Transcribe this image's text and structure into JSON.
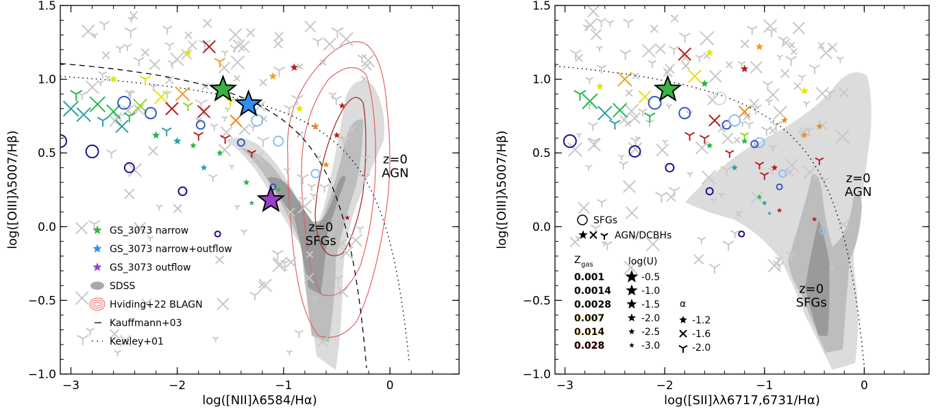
{
  "chart_data": [
    {
      "type": "scatter",
      "id": "nii",
      "xlabel": "log([NII]λ6584/Hα)",
      "ylabel": "log([OIII]λ5007/Hβ)",
      "xlim": [
        -3.1,
        0.65
      ],
      "ylim": [
        -1.0,
        1.5
      ],
      "xticks": [
        "−3",
        "−2",
        "−1",
        "0"
      ],
      "xtick_values": [
        -3,
        -2,
        -1,
        0
      ],
      "yticks": [
        "−1.0",
        "−0.5",
        "0.0",
        "0.5",
        "1.0",
        "1.5"
      ],
      "ytick_values": [
        -1.0,
        -0.5,
        0.0,
        0.5,
        1.0,
        1.5
      ],
      "region_labels": [
        {
          "text": [
            "z=0",
            "AGN"
          ],
          "x": 0.05,
          "y": 0.43
        },
        {
          "text": [
            "z=0",
            "SFGs"
          ],
          "x": -0.65,
          "y": -0.03
        }
      ],
      "stars": [
        {
          "name": "GS_3073 narrow",
          "x": -1.57,
          "y": 0.93,
          "color": "#3cb043"
        },
        {
          "name": "GS_3073 narrow+outflow",
          "x": -1.33,
          "y": 0.83,
          "color": "#2f8ff0"
        },
        {
          "name": "GS_3073 outflow",
          "x": -1.12,
          "y": 0.18,
          "color": "#9a3fc8"
        }
      ],
      "circles": [
        {
          "x": -3.1,
          "y": 0.58,
          "r": 9,
          "color": "#14148a"
        },
        {
          "x": -2.8,
          "y": 0.51,
          "r": 9,
          "color": "#14148a"
        },
        {
          "x": -2.5,
          "y": 0.84,
          "r": 9,
          "color": "#3355cc"
        },
        {
          "x": -2.45,
          "y": 0.4,
          "r": 7,
          "color": "#14148a"
        },
        {
          "x": -2.25,
          "y": 0.77,
          "r": 8,
          "color": "#3355cc"
        },
        {
          "x": -1.95,
          "y": 0.24,
          "r": 6,
          "color": "#14148a"
        },
        {
          "x": -1.78,
          "y": 0.69,
          "r": 6,
          "color": "#3355cc"
        },
        {
          "x": -1.62,
          "y": -0.05,
          "r": 4,
          "color": "#14148a"
        },
        {
          "x": -1.05,
          "y": 0.58,
          "r": 7,
          "color": "#88c0f0"
        },
        {
          "x": -0.7,
          "y": 0.36,
          "r": 6,
          "color": "#88c0f0"
        },
        {
          "x": -1.4,
          "y": 0.57,
          "r": 5,
          "color": "#3355cc"
        },
        {
          "x": -1.1,
          "y": 0.27,
          "r": 4,
          "color": "#3355cc"
        },
        {
          "x": -1.25,
          "y": 0.72,
          "r": 8,
          "color": "#88c0f0"
        }
      ],
      "crosses": [
        {
          "x": -3.0,
          "y": 0.8,
          "s": 11,
          "color": "#2aa0a0"
        },
        {
          "x": -2.88,
          "y": 0.76,
          "s": 10,
          "color": "#2aa0a0"
        },
        {
          "x": -2.75,
          "y": 0.83,
          "s": 11,
          "color": "#22b84a"
        },
        {
          "x": -2.6,
          "y": 0.78,
          "s": 10,
          "color": "#22b84a"
        },
        {
          "x": -2.52,
          "y": 0.68,
          "s": 9,
          "color": "#2aa0a0"
        },
        {
          "x": -2.35,
          "y": 0.82,
          "s": 10,
          "color": "#8dd61e"
        },
        {
          "x": -2.15,
          "y": 0.88,
          "s": 10,
          "color": "#e3e310"
        },
        {
          "x": -2.05,
          "y": 0.8,
          "s": 9,
          "color": "#b52020"
        },
        {
          "x": -1.95,
          "y": 0.9,
          "s": 10,
          "color": "#f0a020"
        },
        {
          "x": -1.75,
          "y": 0.78,
          "s": 9,
          "color": "#b52020"
        },
        {
          "x": -1.7,
          "y": 1.22,
          "s": 9,
          "color": "#b52020"
        },
        {
          "x": -1.45,
          "y": 0.72,
          "s": 8,
          "color": "#f08a1a"
        }
      ],
      "tripods": [
        {
          "x": -2.95,
          "y": 0.9,
          "s": 10,
          "color": "#22b84a"
        },
        {
          "x": -2.7,
          "y": 0.72,
          "s": 9,
          "color": "#2aa0a0"
        },
        {
          "x": -2.45,
          "y": 0.75,
          "s": 9,
          "color": "#22b84a"
        },
        {
          "x": -2.3,
          "y": 1.0,
          "s": 9,
          "color": "#e3e310"
        },
        {
          "x": -2.1,
          "y": 0.65,
          "s": 8,
          "color": "#2aa0a0"
        },
        {
          "x": -1.9,
          "y": 0.82,
          "s": 8,
          "color": "#8dd61e"
        },
        {
          "x": -1.8,
          "y": 0.62,
          "s": 8,
          "color": "#b52020"
        },
        {
          "x": -1.55,
          "y": 0.6,
          "s": 8,
          "color": "#b52020"
        },
        {
          "x": -1.5,
          "y": 0.85,
          "s": 8,
          "color": "#e3e310"
        },
        {
          "x": -1.3,
          "y": 0.5,
          "s": 7,
          "color": "#b52020"
        },
        {
          "x": -1.6,
          "y": 1.12,
          "s": 9,
          "color": "#f0a020"
        }
      ],
      "small_stars": [
        {
          "x": -2.2,
          "y": 0.62,
          "s": 6,
          "color": "#22b84a"
        },
        {
          "x": -2.0,
          "y": 0.58,
          "s": 6,
          "color": "#2aa0a0"
        },
        {
          "x": -1.85,
          "y": 0.55,
          "s": 5,
          "color": "#22b84a"
        },
        {
          "x": -1.75,
          "y": 0.4,
          "s": 5,
          "color": "#2aa0a0"
        },
        {
          "x": -1.6,
          "y": 0.5,
          "s": 5,
          "color": "#22b84a"
        },
        {
          "x": -1.35,
          "y": 0.3,
          "s": 5,
          "color": "#22b84a"
        },
        {
          "x": -1.3,
          "y": 0.16,
          "s": 4,
          "color": "#2aa0a0"
        },
        {
          "x": -1.05,
          "y": 0.25,
          "s": 4,
          "color": "#22b84a"
        },
        {
          "x": -0.9,
          "y": 1.08,
          "s": 6,
          "color": "#b52020"
        },
        {
          "x": -0.85,
          "y": 0.8,
          "s": 6,
          "color": "#e3e310"
        },
        {
          "x": -0.7,
          "y": 0.68,
          "s": 6,
          "color": "#f08a1a"
        },
        {
          "x": -0.5,
          "y": 0.62,
          "s": 5,
          "color": "#b52020"
        },
        {
          "x": -0.45,
          "y": 0.82,
          "s": 5,
          "color": "#b52020"
        },
        {
          "x": -0.4,
          "y": 0.06,
          "s": 4,
          "color": "#b52020"
        },
        {
          "x": -1.1,
          "y": 1.02,
          "s": 6,
          "color": "#f0a020"
        },
        {
          "x": -0.6,
          "y": 0.42,
          "s": 5,
          "color": "#f08a1a"
        },
        {
          "x": -2.6,
          "y": 1.0,
          "s": 6,
          "color": "#e3e310"
        },
        {
          "x": -1.9,
          "y": 1.18,
          "s": 6,
          "color": "#e3e310"
        }
      ],
      "legend": [
        {
          "kind": "star",
          "label": "GS_3073 narrow",
          "color": "#3cb043"
        },
        {
          "kind": "star",
          "label": "GS_3073 narrow+outflow",
          "color": "#2f8ff0"
        },
        {
          "kind": "star",
          "label": "GS_3073 outflow",
          "color": "#9a3fc8"
        },
        {
          "kind": "blob",
          "label": "SDSS",
          "color": "#aaaaaa"
        },
        {
          "kind": "rings",
          "label": "Hviding+22 BLAGN",
          "color": "#e06060"
        },
        {
          "kind": "dash",
          "label": "Kauffmann+03",
          "color": "#000000"
        },
        {
          "kind": "dot",
          "label": "Kewley+01",
          "color": "#000000"
        }
      ]
    },
    {
      "type": "scatter",
      "id": "sii",
      "xlabel": "log([SII]λλ6717,6731/Hα)",
      "ylabel": "log([OIII]λ5007/Hβ)",
      "xlim": [
        -3.1,
        0.65
      ],
      "ylim": [
        -1.0,
        1.5
      ],
      "xticks": [
        "−3",
        "−2",
        "−1",
        "0"
      ],
      "xtick_values": [
        -3,
        -2,
        -1,
        0
      ],
      "yticks": [
        "−1.0",
        "−0.5",
        "0.0",
        "0.5",
        "1.0",
        "1.5"
      ],
      "ytick_values": [
        -1.0,
        -0.5,
        0.0,
        0.5,
        1.0,
        1.5
      ],
      "region_labels": [
        {
          "text": [
            "z=0",
            "AGN"
          ],
          "x": -0.06,
          "y": 0.3
        },
        {
          "text": [
            "z=0",
            "SFGs"
          ],
          "x": -0.53,
          "y": -0.45
        }
      ],
      "stars": [
        {
          "name": "GS_3073 narrow",
          "x": -1.97,
          "y": 0.93,
          "color": "#3cb043"
        }
      ],
      "circles": [
        {
          "x": -2.95,
          "y": 0.58,
          "r": 9,
          "color": "#14148a"
        },
        {
          "x": -2.3,
          "y": 0.51,
          "r": 8,
          "color": "#14148a"
        },
        {
          "x": -2.1,
          "y": 0.84,
          "r": 9,
          "color": "#3355cc"
        },
        {
          "x": -1.95,
          "y": 0.4,
          "r": 6,
          "color": "#14148a"
        },
        {
          "x": -1.8,
          "y": 0.77,
          "r": 8,
          "color": "#3355cc"
        },
        {
          "x": -1.55,
          "y": 0.24,
          "r": 5,
          "color": "#14148a"
        },
        {
          "x": -1.38,
          "y": 0.69,
          "r": 6,
          "color": "#3355cc"
        },
        {
          "x": -1.23,
          "y": -0.05,
          "r": 4,
          "color": "#14148a"
        },
        {
          "x": -1.3,
          "y": 0.72,
          "r": 8,
          "color": "#88c0f0"
        },
        {
          "x": -1.05,
          "y": 0.57,
          "r": 7,
          "color": "#88c0f0"
        },
        {
          "x": -1.45,
          "y": 0.87,
          "r": 9,
          "color": "#c7ddef"
        },
        {
          "x": -0.82,
          "y": 0.36,
          "r": 5,
          "color": "#88c0f0"
        },
        {
          "x": -1.1,
          "y": 0.56,
          "r": 5,
          "color": "#3355cc"
        },
        {
          "x": -0.85,
          "y": 0.27,
          "r": 4,
          "color": "#3355cc"
        },
        {
          "x": -0.42,
          "y": -0.03,
          "r": 4,
          "color": "#88c0f0"
        }
      ],
      "crosses": [
        {
          "x": -2.75,
          "y": 0.85,
          "s": 11,
          "color": "#22b84a"
        },
        {
          "x": -2.6,
          "y": 0.77,
          "s": 10,
          "color": "#2aa0a0"
        },
        {
          "x": -2.45,
          "y": 0.79,
          "s": 10,
          "color": "#22b84a"
        },
        {
          "x": -2.4,
          "y": 1.0,
          "s": 10,
          "color": "#f0a020"
        },
        {
          "x": -2.2,
          "y": 0.88,
          "s": 9,
          "color": "#e3e310"
        },
        {
          "x": -1.8,
          "y": 1.17,
          "s": 9,
          "color": "#b52020"
        },
        {
          "x": -1.7,
          "y": 1.02,
          "s": 9,
          "color": "#e3e310"
        },
        {
          "x": -1.5,
          "y": 0.72,
          "s": 8,
          "color": "#b52020"
        },
        {
          "x": -1.2,
          "y": 0.78,
          "s": 8,
          "color": "#f08a1a"
        }
      ],
      "tripods": [
        {
          "x": -2.85,
          "y": 0.9,
          "s": 10,
          "color": "#22b84a"
        },
        {
          "x": -2.5,
          "y": 0.7,
          "s": 9,
          "color": "#2aa0a0"
        },
        {
          "x": -2.15,
          "y": 0.75,
          "s": 9,
          "color": "#22b84a"
        },
        {
          "x": -1.75,
          "y": 0.62,
          "s": 8,
          "color": "#b52020"
        },
        {
          "x": -1.6,
          "y": 0.6,
          "s": 8,
          "color": "#b52020"
        },
        {
          "x": -1.35,
          "y": 0.5,
          "s": 7,
          "color": "#b52020"
        },
        {
          "x": -1.05,
          "y": 0.42,
          "s": 7,
          "color": "#b52020"
        },
        {
          "x": -1.0,
          "y": 0.35,
          "s": 7,
          "color": "#b52020"
        },
        {
          "x": -1.2,
          "y": 0.62,
          "s": 7,
          "color": "#8dd61e"
        },
        {
          "x": -0.45,
          "y": 0.45,
          "s": 7,
          "color": "#b52020"
        }
      ],
      "small_stars": [
        {
          "x": -2.65,
          "y": 0.95,
          "s": 6,
          "color": "#e3e310"
        },
        {
          "x": -1.6,
          "y": 0.97,
          "s": 6,
          "color": "#22b84a"
        },
        {
          "x": -1.55,
          "y": 0.55,
          "s": 5,
          "color": "#22b84a"
        },
        {
          "x": -1.3,
          "y": 0.4,
          "s": 5,
          "color": "#2aa0a0"
        },
        {
          "x": -1.2,
          "y": 0.58,
          "s": 5,
          "color": "#22b84a"
        },
        {
          "x": -1.05,
          "y": 0.2,
          "s": 4,
          "color": "#22b84a"
        },
        {
          "x": -1.0,
          "y": 0.16,
          "s": 4,
          "color": "#2aa0a0"
        },
        {
          "x": -0.95,
          "y": 0.09,
          "s": 3,
          "color": "#2aa0a0"
        },
        {
          "x": -0.9,
          "y": 0.4,
          "s": 5,
          "color": "#b52020"
        },
        {
          "x": -0.85,
          "y": 0.11,
          "s": 4,
          "color": "#b52020"
        },
        {
          "x": -0.8,
          "y": 0.72,
          "s": 5,
          "color": "#f08a1a"
        },
        {
          "x": -0.6,
          "y": 0.92,
          "s": 6,
          "color": "#e3e310"
        },
        {
          "x": -0.6,
          "y": 0.62,
          "s": 5,
          "color": "#f08a1a"
        },
        {
          "x": -0.45,
          "y": 0.68,
          "s": 5,
          "color": "#f08a1a"
        },
        {
          "x": -0.5,
          "y": 0.05,
          "s": 4,
          "color": "#b52020"
        },
        {
          "x": -1.2,
          "y": 1.07,
          "s": 6,
          "color": "#b52020"
        },
        {
          "x": -1.05,
          "y": 1.22,
          "s": 6,
          "color": "#f0a020"
        },
        {
          "x": -1.55,
          "y": 1.18,
          "s": 6,
          "color": "#e3e310"
        }
      ],
      "legend_markers": {
        "sfg": "SFGs",
        "agn": "AGN/DCBHs"
      },
      "zgas_header": "Z",
      "zgas_sub": "gas",
      "logu_header": "log(U)",
      "alpha_header": "α",
      "zgas_values": [
        {
          "label": "0.001",
          "color": "#1a8f8f",
          "edge": "#6a6a6a"
        },
        {
          "label": "0.0014",
          "color": "#22b84a",
          "edge": "#6a6a6a"
        },
        {
          "label": "0.0028",
          "color": "#8dd61e",
          "edge": "#6a6a6a"
        },
        {
          "label": "0.007",
          "color": "#e3e310",
          "edge": "#b5a000"
        },
        {
          "label": "0.014",
          "color": "#f08a1a",
          "edge": "#f0a020"
        },
        {
          "label": "0.028",
          "color": "#b52020",
          "edge": "#b52020"
        }
      ],
      "logu_values": [
        "-0.5",
        "-1.0",
        "-1.5",
        "-2.0",
        "-2.5",
        "-3.0"
      ],
      "alpha_values": [
        "-1.2",
        "-1.6",
        "-2.0"
      ]
    }
  ]
}
